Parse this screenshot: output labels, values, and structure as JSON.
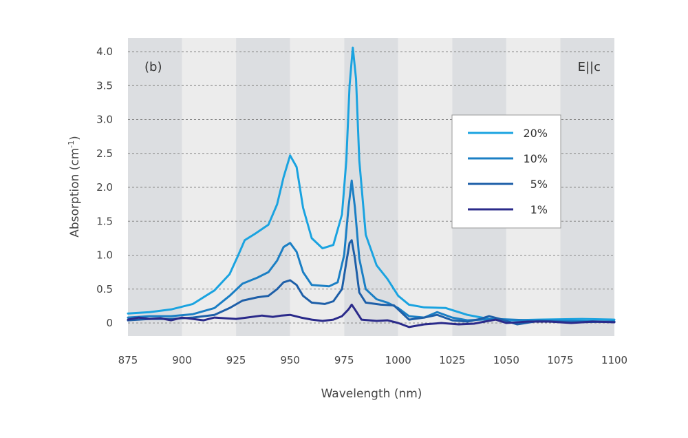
{
  "chart_data": {
    "type": "line",
    "panel_label": "(b)",
    "polarization_label": "E||c",
    "xlabel": "Wavelength (nm)",
    "ylabel_main": "Absorption (cm",
    "ylabel_sup": "-1",
    "ylabel_end": ")",
    "xlim": [
      875,
      1100
    ],
    "ylim": [
      -0.2,
      4.1
    ],
    "x_ticks": [
      "875",
      "900",
      "925",
      "950",
      "975",
      "1000",
      "1025",
      "1050",
      "1075",
      "1100"
    ],
    "y_ticks": [
      "0",
      "0.5",
      "1.0",
      "1.5",
      "2.0",
      "2.5",
      "3.0",
      "3.5",
      "4.0"
    ],
    "grid": "horizontal dashed",
    "background_bands": "alternating grey every 25 nm",
    "legend_position": "right",
    "series": [
      {
        "name": "20%",
        "color": "#1aa3e0",
        "points": [
          [
            875,
            0.14
          ],
          [
            885,
            0.16
          ],
          [
            895,
            0.2
          ],
          [
            905,
            0.28
          ],
          [
            915,
            0.48
          ],
          [
            922,
            0.72
          ],
          [
            926,
            1.0
          ],
          [
            929,
            1.22
          ],
          [
            934,
            1.32
          ],
          [
            940,
            1.45
          ],
          [
            944,
            1.75
          ],
          [
            947,
            2.15
          ],
          [
            950,
            2.47
          ],
          [
            953,
            2.3
          ],
          [
            956,
            1.7
          ],
          [
            960,
            1.25
          ],
          [
            965,
            1.1
          ],
          [
            970,
            1.15
          ],
          [
            974,
            1.6
          ],
          [
            976,
            2.4
          ],
          [
            977.5,
            3.5
          ],
          [
            979,
            4.06
          ],
          [
            980.5,
            3.6
          ],
          [
            982,
            2.4
          ],
          [
            985,
            1.3
          ],
          [
            990,
            0.85
          ],
          [
            995,
            0.65
          ],
          [
            1000,
            0.4
          ],
          [
            1005,
            0.27
          ],
          [
            1012,
            0.23
          ],
          [
            1022,
            0.22
          ],
          [
            1032,
            0.12
          ],
          [
            1042,
            0.06
          ],
          [
            1052,
            0.04
          ],
          [
            1065,
            0.05
          ],
          [
            1085,
            0.06
          ],
          [
            1100,
            0.05
          ]
        ]
      },
      {
        "name": "10%",
        "color": "#1b7fc4",
        "points": [
          [
            875,
            0.08
          ],
          [
            885,
            0.1
          ],
          [
            895,
            0.1
          ],
          [
            905,
            0.13
          ],
          [
            915,
            0.22
          ],
          [
            922,
            0.4
          ],
          [
            928,
            0.58
          ],
          [
            935,
            0.67
          ],
          [
            940,
            0.75
          ],
          [
            944,
            0.92
          ],
          [
            947,
            1.12
          ],
          [
            950,
            1.18
          ],
          [
            953,
            1.05
          ],
          [
            956,
            0.75
          ],
          [
            960,
            0.56
          ],
          [
            968,
            0.54
          ],
          [
            972,
            0.6
          ],
          [
            975,
            1.0
          ],
          [
            977,
            1.7
          ],
          [
            978.5,
            2.1
          ],
          [
            980,
            1.7
          ],
          [
            982,
            0.95
          ],
          [
            985,
            0.5
          ],
          [
            990,
            0.35
          ],
          [
            995,
            0.3
          ],
          [
            1000,
            0.22
          ],
          [
            1005,
            0.1
          ],
          [
            1012,
            0.08
          ],
          [
            1018,
            0.16
          ],
          [
            1025,
            0.08
          ],
          [
            1032,
            0.04
          ],
          [
            1045,
            0.06
          ],
          [
            1060,
            0.04
          ],
          [
            1080,
            0.03
          ],
          [
            1100,
            0.02
          ]
        ]
      },
      {
        "name": "5%",
        "color": "#1e5fa8",
        "points": [
          [
            875,
            0.04
          ],
          [
            885,
            0.06
          ],
          [
            895,
            0.06
          ],
          [
            905,
            0.08
          ],
          [
            915,
            0.12
          ],
          [
            922,
            0.22
          ],
          [
            928,
            0.33
          ],
          [
            935,
            0.38
          ],
          [
            940,
            0.4
          ],
          [
            944,
            0.5
          ],
          [
            947,
            0.6
          ],
          [
            950,
            0.63
          ],
          [
            953,
            0.56
          ],
          [
            956,
            0.4
          ],
          [
            960,
            0.3
          ],
          [
            966,
            0.28
          ],
          [
            970,
            0.32
          ],
          [
            974,
            0.5
          ],
          [
            976,
            0.9
          ],
          [
            977.5,
            1.18
          ],
          [
            978.5,
            1.22
          ],
          [
            980,
            0.95
          ],
          [
            982,
            0.45
          ],
          [
            985,
            0.3
          ],
          [
            992,
            0.27
          ],
          [
            998,
            0.26
          ],
          [
            1005,
            0.05
          ],
          [
            1012,
            0.08
          ],
          [
            1018,
            0.12
          ],
          [
            1025,
            0.04
          ],
          [
            1032,
            0.02
          ],
          [
            1038,
            0.06
          ],
          [
            1042,
            0.1
          ],
          [
            1047,
            0.06
          ],
          [
            1055,
            -0.02
          ],
          [
            1065,
            0.03
          ],
          [
            1080,
            0.01
          ],
          [
            1100,
            0.02
          ]
        ]
      },
      {
        "name": "1%",
        "color": "#2a2a8a",
        "points": [
          [
            875,
            0.05
          ],
          [
            880,
            0.08
          ],
          [
            885,
            0.06
          ],
          [
            890,
            0.07
          ],
          [
            895,
            0.04
          ],
          [
            900,
            0.08
          ],
          [
            905,
            0.06
          ],
          [
            910,
            0.04
          ],
          [
            915,
            0.08
          ],
          [
            920,
            0.07
          ],
          [
            925,
            0.06
          ],
          [
            930,
            0.08
          ],
          [
            937,
            0.11
          ],
          [
            942,
            0.09
          ],
          [
            946,
            0.11
          ],
          [
            950,
            0.12
          ],
          [
            955,
            0.08
          ],
          [
            960,
            0.05
          ],
          [
            965,
            0.03
          ],
          [
            970,
            0.05
          ],
          [
            974,
            0.1
          ],
          [
            977,
            0.2
          ],
          [
            978.5,
            0.27
          ],
          [
            980,
            0.2
          ],
          [
            983,
            0.05
          ],
          [
            990,
            0.03
          ],
          [
            995,
            0.04
          ],
          [
            1000,
            0.0
          ],
          [
            1005,
            -0.06
          ],
          [
            1012,
            -0.02
          ],
          [
            1020,
            0.0
          ],
          [
            1028,
            -0.02
          ],
          [
            1035,
            -0.01
          ],
          [
            1040,
            0.02
          ],
          [
            1045,
            0.05
          ],
          [
            1050,
            0.0
          ],
          [
            1060,
            0.02
          ],
          [
            1070,
            0.02
          ],
          [
            1080,
            0.0
          ],
          [
            1090,
            0.02
          ],
          [
            1100,
            0.01
          ]
        ]
      }
    ]
  }
}
